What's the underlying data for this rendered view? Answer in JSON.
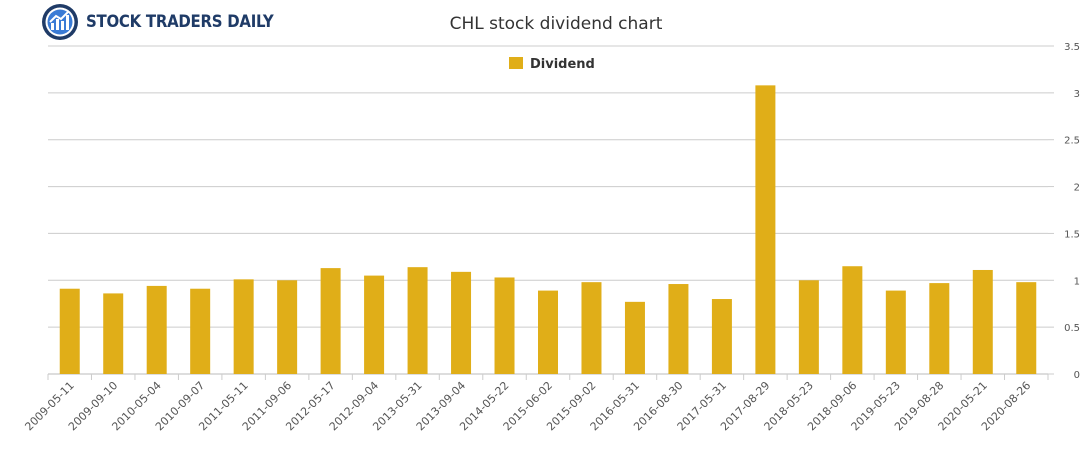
{
  "brand": {
    "name": "STOCK TRADERS DAILY"
  },
  "chart_data": {
    "type": "bar",
    "title": "CHL stock dividend chart",
    "legend": {
      "position": "top-center"
    },
    "xlabel": "",
    "ylabel": "",
    "ylim": [
      0,
      3.5
    ],
    "yticks": [
      "0",
      "0.5",
      "1",
      "1.5",
      "2",
      "2.5",
      "3",
      "3.5"
    ],
    "yaxis_side": "right",
    "grid": true,
    "categories": [
      "2009-05-11",
      "2009-09-10",
      "2010-05-04",
      "2010-09-07",
      "2011-05-11",
      "2011-09-06",
      "2012-05-17",
      "2012-09-04",
      "2013-05-31",
      "2013-09-04",
      "2014-05-22",
      "2015-06-02",
      "2015-09-02",
      "2016-05-31",
      "2016-08-30",
      "2017-05-31",
      "2017-08-29",
      "2018-05-23",
      "2018-09-06",
      "2019-05-23",
      "2019-08-28",
      "2020-05-21",
      "2020-08-26"
    ],
    "series": [
      {
        "name": "Dividend",
        "color": "#e0ae18",
        "values": [
          0.91,
          0.86,
          0.94,
          0.91,
          1.01,
          1.0,
          1.13,
          1.05,
          1.14,
          1.09,
          1.03,
          0.89,
          0.98,
          0.77,
          0.96,
          0.8,
          3.08,
          1.0,
          1.15,
          0.89,
          0.97,
          1.11,
          0.98
        ]
      }
    ]
  }
}
